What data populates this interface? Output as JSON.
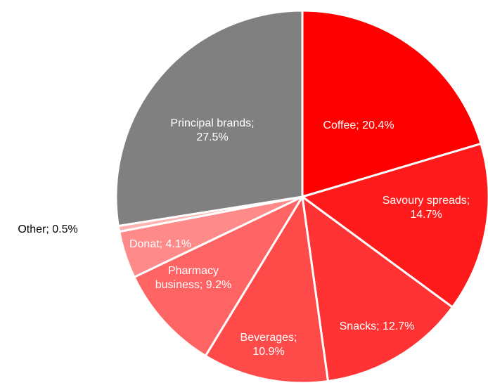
{
  "chart_data": {
    "type": "pie",
    "start_angle": "12 o'clock",
    "direction": "clockwise",
    "slices": [
      {
        "label": "Coffee",
        "value": 20.4,
        "text": [
          "Coffee; 20.4%"
        ],
        "color": "#ff0000",
        "text_color": "#ffffff"
      },
      {
        "label": "Savoury spreads",
        "value": 14.7,
        "text": [
          "Savoury spreads;",
          "14.7%"
        ],
        "color": "#ff1b1b",
        "text_color": "#ffffff"
      },
      {
        "label": "Snacks",
        "value": 12.7,
        "text": [
          "Snacks; 12.7%"
        ],
        "color": "#ff3333",
        "text_color": "#ffffff"
      },
      {
        "label": "Beverages",
        "value": 10.9,
        "text": [
          "Beverages;",
          "10.9%"
        ],
        "color": "#ff4a4a",
        "text_color": "#ffffff"
      },
      {
        "label": "Pharmacy business",
        "value": 9.2,
        "text": [
          "Pharmacy",
          "business; 9.2%"
        ],
        "color": "#ff6464",
        "text_color": "#ffffff"
      },
      {
        "label": "Donat",
        "value": 4.1,
        "text": [
          "Donat; 4.1%"
        ],
        "color": "#ff8a8a",
        "text_color": "#ffffff"
      },
      {
        "label": "Other",
        "value": 0.5,
        "text": [
          "Other; 0.5%"
        ],
        "color": "#ffb3b3",
        "text_color": "#000000"
      },
      {
        "label": "Principal brands",
        "value": 27.5,
        "text": [
          "Principal brands;",
          "27.5%"
        ],
        "color": "#808080",
        "text_color": "#ffffff"
      }
    ]
  }
}
